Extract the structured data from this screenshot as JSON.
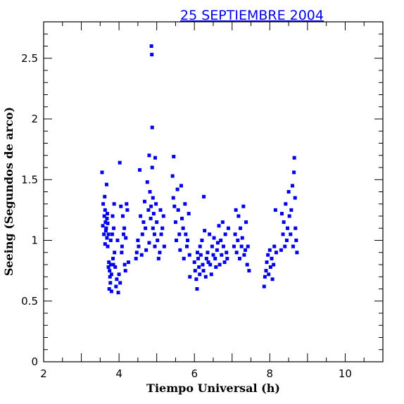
{
  "chart_data": {
    "type": "scatter",
    "title": "25 SEPTIEMBRE 2004",
    "xlabel": "Tiempo Universal (h)",
    "ylabel": "Seeing (Segundos de arco)",
    "xlim": [
      2,
      11
    ],
    "ylim": [
      0,
      2.8
    ],
    "xticks": [
      2,
      4,
      6,
      8,
      10
    ],
    "yticks": [
      0,
      0.5,
      1,
      1.5,
      2,
      2.5
    ],
    "xtick_labels": [
      "2",
      "4",
      "6",
      "8",
      "10"
    ],
    "ytick_labels": [
      "0",
      "0.5",
      "1",
      "1.5",
      "2",
      "2.5"
    ],
    "grid": false,
    "colors": {
      "points": "#0000ee",
      "title": "#0000ee",
      "axes": "#000000"
    },
    "series": [
      {
        "x": [
          3.55,
          3.57,
          3.58,
          3.6,
          3.61,
          3.62,
          3.63,
          3.63,
          3.64,
          3.65,
          3.66,
          3.67,
          3.68,
          3.68,
          3.69,
          3.7,
          3.7,
          3.72,
          3.72,
          3.73,
          3.74,
          3.75,
          3.76,
          3.77,
          3.78,
          3.78,
          3.8,
          3.8,
          3.82,
          3.83,
          3.84,
          3.85,
          3.86,
          3.87,
          3.88,
          3.9,
          3.92,
          3.94,
          3.96,
          3.98,
          4.0,
          4.02,
          4.03,
          4.05,
          4.07,
          4.08,
          4.1,
          4.12,
          4.14,
          4.15,
          4.17,
          4.18,
          4.2,
          4.22,
          4.25,
          4.45,
          4.47,
          4.5,
          4.52,
          4.55,
          4.57,
          4.6,
          4.62,
          4.65,
          4.68,
          4.7,
          4.72,
          4.75,
          4.78,
          4.8,
          4.8,
          4.82,
          4.84,
          4.85,
          4.86,
          4.87,
          4.88,
          4.88,
          4.9,
          4.9,
          4.92,
          4.94,
          4.95,
          4.96,
          4.98,
          5.0,
          5.02,
          5.05,
          5.08,
          5.1,
          5.12,
          5.15,
          5.18,
          5.2,
          5.42,
          5.44,
          5.45,
          5.47,
          5.5,
          5.52,
          5.55,
          5.57,
          5.6,
          5.62,
          5.65,
          5.67,
          5.7,
          5.72,
          5.75,
          5.77,
          5.8,
          5.82,
          5.85,
          5.87,
          5.88,
          6.0,
          6.02,
          6.05,
          6.07,
          6.08,
          6.1,
          6.12,
          6.14,
          6.15,
          6.17,
          6.2,
          6.22,
          6.24,
          6.25,
          6.27,
          6.3,
          6.32,
          6.35,
          6.37,
          6.4,
          6.42,
          6.45,
          6.47,
          6.5,
          6.52,
          6.55,
          6.57,
          6.6,
          6.62,
          6.65,
          6.67,
          6.7,
          6.72,
          6.75,
          6.77,
          6.8,
          6.82,
          6.85,
          6.87,
          6.9,
          7.05,
          7.08,
          7.1,
          7.12,
          7.15,
          7.17,
          7.2,
          7.22,
          7.25,
          7.27,
          7.3,
          7.32,
          7.35,
          7.37,
          7.4,
          7.42,
          7.45,
          7.85,
          7.87,
          7.9,
          7.92,
          7.95,
          7.97,
          8.0,
          8.02,
          8.05,
          8.07,
          8.1,
          8.12,
          8.15,
          8.17,
          8.3,
          8.32,
          8.35,
          8.37,
          8.4,
          8.42,
          8.45,
          8.47,
          8.5,
          8.52,
          8.55,
          8.57,
          8.6,
          8.62,
          8.64,
          8.65,
          8.67,
          8.68,
          8.7,
          8.72
        ],
        "y": [
          1.56,
          1.12,
          1.3,
          1.05,
          1.2,
          1.36,
          0.97,
          1.25,
          1.15,
          1.08,
          1.1,
          1.46,
          1.18,
          1.02,
          1.22,
          1.14,
          0.95,
          0.78,
          1.05,
          0.82,
          0.6,
          0.75,
          0.7,
          0.65,
          0.8,
          1.0,
          0.72,
          0.58,
          1.05,
          1.2,
          0.85,
          0.8,
          1.1,
          1.3,
          0.9,
          0.78,
          0.62,
          0.68,
          1.0,
          0.57,
          0.72,
          1.64,
          0.65,
          1.28,
          0.9,
          0.95,
          1.2,
          1.05,
          1.1,
          0.8,
          0.75,
          1.02,
          1.3,
          1.25,
          0.82,
          0.85,
          0.9,
          1.0,
          0.95,
          1.58,
          1.2,
          0.88,
          1.05,
          1.15,
          1.32,
          1.1,
          0.92,
          1.48,
          1.25,
          0.98,
          1.7,
          1.4,
          1.18,
          1.28,
          2.6,
          2.53,
          1.93,
          1.6,
          1.35,
          1.1,
          1.22,
          1.05,
          0.95,
          1.68,
          1.3,
          1.15,
          1.0,
          0.85,
          0.9,
          1.25,
          1.05,
          1.1,
          1.2,
          0.95,
          1.53,
          1.35,
          1.69,
          1.28,
          1.15,
          1.0,
          1.42,
          1.25,
          1.05,
          0.92,
          1.45,
          1.18,
          1.1,
          0.85,
          1.3,
          1.05,
          0.95,
          1.0,
          1.22,
          0.88,
          0.7,
          0.82,
          0.75,
          0.68,
          0.6,
          0.9,
          0.85,
          0.78,
          0.72,
          0.95,
          0.88,
          1.0,
          0.8,
          0.75,
          1.36,
          1.08,
          0.7,
          0.85,
          0.9,
          0.82,
          1.05,
          0.8,
          0.72,
          0.95,
          0.88,
          1.02,
          0.85,
          0.78,
          0.92,
          0.98,
          1.12,
          0.8,
          1.0,
          0.88,
          1.15,
          0.95,
          0.82,
          1.05,
          0.9,
          0.85,
          1.1,
          0.95,
          1.05,
          1.25,
          0.9,
          1.0,
          1.2,
          0.85,
          1.1,
          0.95,
          1.02,
          1.28,
          0.88,
          0.92,
          1.15,
          0.8,
          0.95,
          0.75,
          0.62,
          0.7,
          0.75,
          0.82,
          0.88,
          0.72,
          0.92,
          0.78,
          0.85,
          0.68,
          0.8,
          0.95,
          1.25,
          0.9,
          0.92,
          1.22,
          1.05,
          1.15,
          0.95,
          1.3,
          1.0,
          1.1,
          1.4,
          1.2,
          1.05,
          1.25,
          1.45,
          0.95,
          1.56,
          1.68,
          1.35,
          1.1,
          1.0,
          0.9
        ]
      }
    ]
  }
}
